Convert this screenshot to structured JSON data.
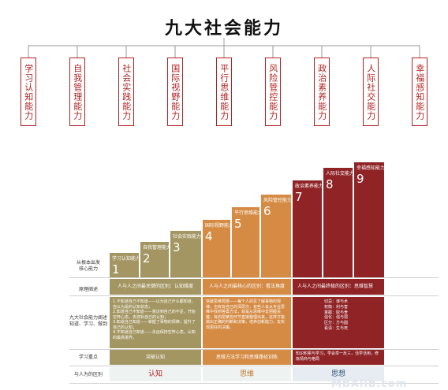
{
  "title": "九大社会能力",
  "abilities": [
    "学习认知能力",
    "自我管理能力",
    "社会实践能力",
    "国际视野能力",
    "平行思维能力",
    "风险管控能力",
    "政治素养能力",
    "人际社交能力",
    "幸福感知能力"
  ],
  "colors": {
    "olive": "#a39662",
    "orange": "#d58b44",
    "red": "#8f2326",
    "accent": "#b22222"
  },
  "steps": [
    {
      "label": "学习认知能力",
      "num": "1"
    },
    {
      "label": "自我管理能力",
      "num": "2"
    },
    {
      "label": "社会实践能力",
      "num": "3"
    },
    {
      "label": "国际视野能力",
      "num": "4"
    },
    {
      "label": "平行思维能力",
      "num": "5"
    },
    {
      "label": "风险管控能力",
      "num": "6"
    },
    {
      "label": "政治素养能力",
      "num": "7"
    },
    {
      "label": "人际社交能力",
      "num": "8"
    },
    {
      "label": "幸福感知能力",
      "num": "9"
    }
  ],
  "rows": {
    "r1": "从根本出发\n核心能力",
    "r2": "原理阐述",
    "r3": "九大社会能力阐述\n知道、学习、做到",
    "r4": "学习重点",
    "r5": "与人为的区别"
  },
  "principles": [
    "人与人之间最关键的区别：认知维度",
    "人与人之间最核心的区别：看法角度",
    "人与人之间最终极的区别：思维智慧"
  ],
  "details": [
    "1.不知道自己不知道——以为自己什么都知道，自以为是的认知状态；\n2.知道自己不知道——意识到自己的不足，开始空杯心态，去弥补自己的认知；\n3.知道自己知道——掌握了事物的规律，提升了自己的认知；\n4.不知道自己知道——永远保持空杯心态，认知的最高境界。",
    "突破思维局限——每个人的见了解事物的规律，也有有自己的深层次，有些人会从专业思维中找到答案方法，就是从思维中去把握关键，有的把某些环节直接整理出来，这样才能做出正确的判断和决策，培养创新能力，去实现更好的决策。",
    "切忌：谋与术\n权衡：利与害\n掌握：取与舍\n强化：强与弱\n区分：方与圆\n看清：生与死"
  ],
  "focus": [
    "突破认知",
    "思维方法学习和思维路径训练",
    "知识积累与学习，学会举一反三，活学活用，修炼情商与格局"
  ],
  "footer": [
    "认知",
    "思维",
    "思想"
  ],
  "watermark": "MBAlib.com"
}
